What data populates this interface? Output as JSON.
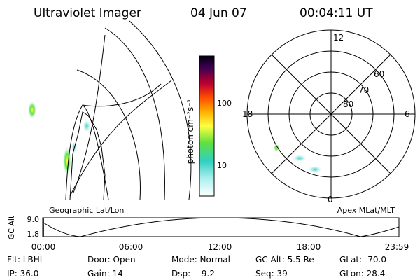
{
  "header": {
    "instrument": "Ultraviolet Imager",
    "date": "04 Jun 07",
    "time": "00:04:11 UT"
  },
  "colorbar": {
    "label": "photon cm⁻²s⁻¹",
    "ticks": [
      "100",
      "10"
    ]
  },
  "polar": {
    "hour_labels": [
      "12",
      "18",
      "6",
      "0"
    ],
    "lat_labels": [
      "60",
      "70",
      "80"
    ]
  },
  "map_labels": {
    "left": "Geographic Lat/Lon",
    "right": "Apex MLat/MLT"
  },
  "altitude": {
    "axis_label": "GC Alt",
    "yticks": [
      "9.0",
      "1.8"
    ],
    "xticks": [
      "00:00",
      "06:00",
      "12:00",
      "18:00",
      "23:59"
    ]
  },
  "footer": {
    "rows": [
      [
        "Flt: LBHL",
        "Door: Open",
        "Mode: Normal",
        "GC Alt: 5.5 Re",
        "GLat: -70.0"
      ],
      [
        "IP: 36.0",
        "Gain: 14",
        "Dsp:   -9.2",
        "Seq: 39",
        "GLon: 28.4"
      ]
    ]
  }
}
